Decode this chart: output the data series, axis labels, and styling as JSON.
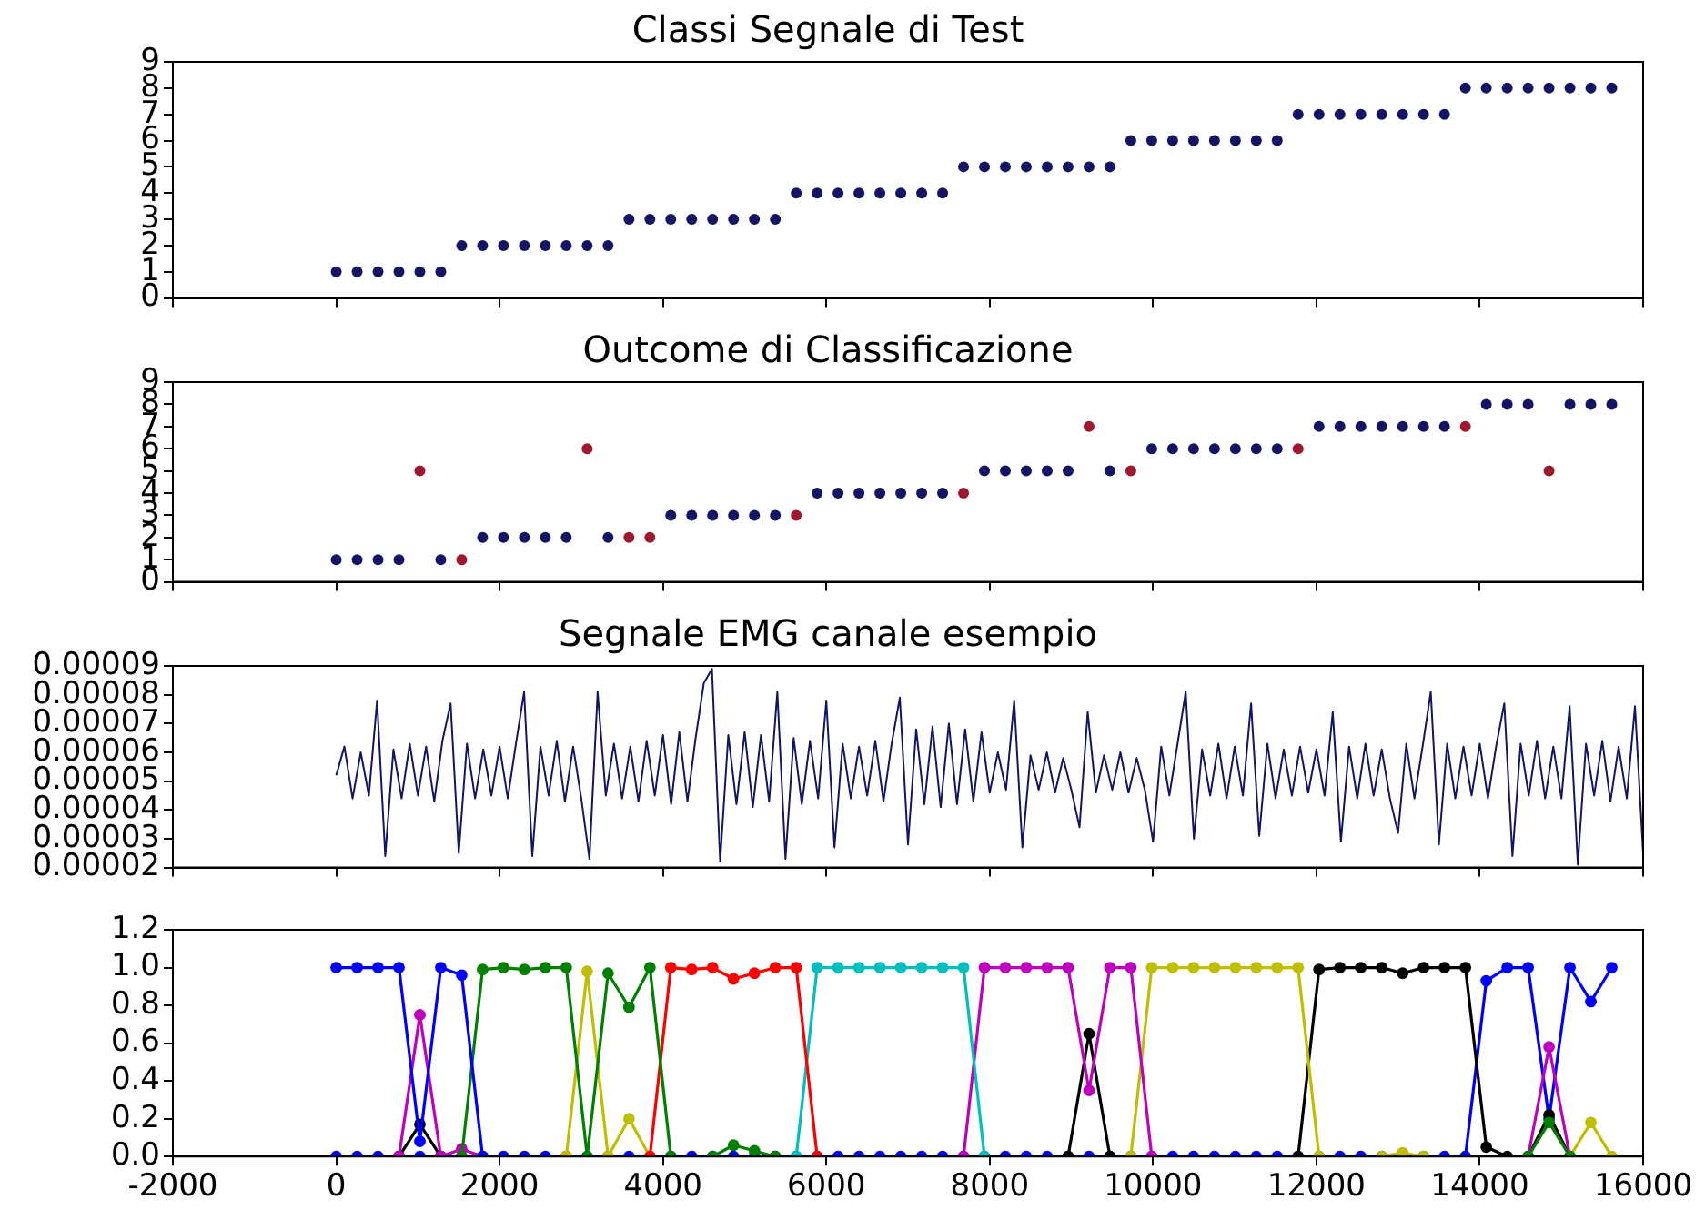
{
  "chart_data": [
    {
      "type": "scatter",
      "title": "Classi Segnale di Test",
      "marker": "circle",
      "tick_labels": "y",
      "xlim": [
        -2000,
        16000
      ],
      "xticks": [
        -2000,
        0,
        2000,
        4000,
        6000,
        8000,
        10000,
        12000,
        14000,
        16000
      ],
      "ylim": [
        0,
        9
      ],
      "yticks": [
        0,
        1,
        2,
        3,
        4,
        5,
        6,
        7,
        8,
        9
      ],
      "series": [
        {
          "color": "#141464",
          "x": [
            0,
            256,
            512,
            768,
            1024,
            1280,
            1536,
            1792,
            2048,
            2304,
            2560,
            2816,
            3072,
            3328,
            3584,
            3840,
            4096,
            4352,
            4608,
            4864,
            5120,
            5376,
            5632,
            5888,
            6144,
            6400,
            6656,
            6912,
            7168,
            7424,
            7680,
            7936,
            8192,
            8448,
            8704,
            8960,
            9216,
            9472,
            9728,
            9984,
            10240,
            10496,
            10752,
            11008,
            11264,
            11520,
            11776,
            12032,
            12288,
            12544,
            12800,
            13056,
            13312,
            13568,
            13824,
            14080,
            14336,
            14592,
            14848,
            15104,
            15360,
            15616
          ],
          "values": [
            1,
            1,
            1,
            1,
            1,
            1,
            2,
            2,
            2,
            2,
            2,
            2,
            2,
            2,
            3,
            3,
            3,
            3,
            3,
            3,
            3,
            3,
            4,
            4,
            4,
            4,
            4,
            4,
            4,
            4,
            5,
            5,
            5,
            5,
            5,
            5,
            5,
            5,
            6,
            6,
            6,
            6,
            6,
            6,
            6,
            6,
            7,
            7,
            7,
            7,
            7,
            7,
            7,
            7,
            8,
            8,
            8,
            8,
            8,
            8,
            8,
            8
          ]
        }
      ]
    },
    {
      "type": "scatter",
      "title": "Outcome di Classificazione",
      "marker": "circle",
      "tick_labels": "y",
      "xlim": [
        -2000,
        16000
      ],
      "xticks": [
        -2000,
        0,
        2000,
        4000,
        6000,
        8000,
        10000,
        12000,
        14000,
        16000
      ],
      "ylim": [
        0,
        9
      ],
      "yticks": [
        0,
        1,
        2,
        3,
        4,
        5,
        6,
        7,
        8,
        9
      ],
      "series": [
        {
          "color": "#141464",
          "x": [
            0,
            256,
            512,
            768,
            1280,
            1792,
            2048,
            2304,
            2560,
            2816,
            3328,
            4096,
            4352,
            4608,
            4864,
            5120,
            5376,
            5888,
            6144,
            6400,
            6656,
            6912,
            7168,
            7424,
            7936,
            8192,
            8448,
            8704,
            8960,
            9472,
            9984,
            10240,
            10496,
            10752,
            11008,
            11264,
            11520,
            12032,
            12288,
            12544,
            12800,
            13056,
            13312,
            13568,
            14080,
            14336,
            14592,
            15104,
            15360,
            15616
          ],
          "values": [
            1,
            1,
            1,
            1,
            1,
            2,
            2,
            2,
            2,
            2,
            2,
            3,
            3,
            3,
            3,
            3,
            3,
            4,
            4,
            4,
            4,
            4,
            4,
            4,
            5,
            5,
            5,
            5,
            5,
            5,
            6,
            6,
            6,
            6,
            6,
            6,
            6,
            7,
            7,
            7,
            7,
            7,
            7,
            7,
            8,
            8,
            8,
            8,
            8,
            8
          ]
        },
        {
          "color": "#a0182e",
          "x": [
            1024,
            1536,
            3072,
            3584,
            3840,
            5632,
            7680,
            9216,
            9728,
            11776,
            13824,
            14848
          ],
          "values": [
            5,
            1,
            6,
            2,
            2,
            3,
            4,
            7,
            5,
            6,
            7,
            5
          ]
        }
      ]
    },
    {
      "type": "line",
      "title": "Segnale EMG canale esempio",
      "marker": "none",
      "tick_labels": "y",
      "xlim": [
        -2000,
        16000
      ],
      "xticks": [
        -2000,
        0,
        2000,
        4000,
        6000,
        8000,
        10000,
        12000,
        14000,
        16000
      ],
      "ylim": [
        2e-05,
        9e-05
      ],
      "yticks": [
        {
          "value": 2e-05,
          "label": "0.00002"
        },
        {
          "value": 3e-05,
          "label": "0.00003"
        },
        {
          "value": 4e-05,
          "label": "0.00004"
        },
        {
          "value": 5e-05,
          "label": "0.00005"
        },
        {
          "value": 6e-05,
          "label": "0.00006"
        },
        {
          "value": 7e-05,
          "label": "0.00007"
        },
        {
          "value": 8e-05,
          "label": "0.00008"
        },
        {
          "value": 9e-05,
          "label": "0.00009"
        }
      ],
      "series": [
        {
          "color": "#141464",
          "x": [
            0,
            100,
            200,
            300,
            400,
            500,
            600,
            700,
            800,
            900,
            1000,
            1100,
            1200,
            1300,
            1400,
            1500,
            1600,
            1700,
            1800,
            1900,
            2000,
            2100,
            2200,
            2300,
            2400,
            2500,
            2600,
            2700,
            2800,
            2900,
            3000,
            3100,
            3200,
            3300,
            3400,
            3500,
            3600,
            3700,
            3800,
            3900,
            4000,
            4100,
            4200,
            4300,
            4400,
            4500,
            4600,
            4700,
            4800,
            4900,
            5000,
            5100,
            5200,
            5300,
            5400,
            5500,
            5600,
            5700,
            5800,
            5900,
            6000,
            6100,
            6200,
            6300,
            6400,
            6500,
            6600,
            6700,
            6800,
            6900,
            7000,
            7100,
            7200,
            7300,
            7400,
            7500,
            7600,
            7700,
            7800,
            7900,
            8000,
            8100,
            8200,
            8300,
            8400,
            8500,
            8600,
            8700,
            8800,
            8900,
            9000,
            9100,
            9200,
            9300,
            9400,
            9500,
            9600,
            9700,
            9800,
            9900,
            10000,
            10100,
            10200,
            10300,
            10400,
            10500,
            10600,
            10700,
            10800,
            10900,
            11000,
            11100,
            11200,
            11300,
            11400,
            11500,
            11600,
            11700,
            11800,
            11900,
            12000,
            12100,
            12200,
            12300,
            12400,
            12500,
            12600,
            12700,
            12800,
            12900,
            13000,
            13100,
            13200,
            13300,
            13400,
            13500,
            13600,
            13700,
            13800,
            13900,
            14000,
            14100,
            14200,
            14300,
            14400,
            14500,
            14600,
            14700,
            14800,
            14900,
            15000,
            15100,
            15200,
            15300,
            15400,
            15500,
            15600,
            15700,
            15800,
            15900,
            16000
          ],
          "values": [
            5.2e-05,
            6.2e-05,
            4.4e-05,
            6e-05,
            4.5e-05,
            7.8e-05,
            2.4e-05,
            6.1e-05,
            4.4e-05,
            6.3e-05,
            4.5e-05,
            6.2e-05,
            4.3e-05,
            6.4e-05,
            7.7e-05,
            2.5e-05,
            6.3e-05,
            4.4e-05,
            6.1e-05,
            4.5e-05,
            6.2e-05,
            4.4e-05,
            6.3e-05,
            8.1e-05,
            2.4e-05,
            6.2e-05,
            4.5e-05,
            6.4e-05,
            4.3e-05,
            6.2e-05,
            4.4e-05,
            2.3e-05,
            8.1e-05,
            4.5e-05,
            6.3e-05,
            4.4e-05,
            6.2e-05,
            4.3e-05,
            6.4e-05,
            4.5e-05,
            6.6e-05,
            4.2e-05,
            6.7e-05,
            4.3e-05,
            6.5e-05,
            8.4e-05,
            8.9e-05,
            2.2e-05,
            6.6e-05,
            4.2e-05,
            6.7e-05,
            4.1e-05,
            6.6e-05,
            4.3e-05,
            8.1e-05,
            2.3e-05,
            6.5e-05,
            4.2e-05,
            6.4e-05,
            4.4e-05,
            7.8e-05,
            2.7e-05,
            6.3e-05,
            4.4e-05,
            6.2e-05,
            4.5e-05,
            6.4e-05,
            4.3e-05,
            6.3e-05,
            7.9e-05,
            2.8e-05,
            6.8e-05,
            4.2e-05,
            6.9e-05,
            4.1e-05,
            7e-05,
            4.2e-05,
            6.8e-05,
            4.3e-05,
            6.7e-05,
            4.6e-05,
            6e-05,
            4.7e-05,
            7.8e-05,
            2.7e-05,
            5.9e-05,
            4.7e-05,
            6e-05,
            4.6e-05,
            5.8e-05,
            4.7e-05,
            3.4e-05,
            7.4e-05,
            4.6e-05,
            5.9e-05,
            4.7e-05,
            6e-05,
            4.6e-05,
            5.8e-05,
            4.7e-05,
            2.9e-05,
            6.2e-05,
            4.5e-05,
            6.3e-05,
            8.1e-05,
            3e-05,
            6.1e-05,
            4.5e-05,
            6.3e-05,
            4.4e-05,
            6.2e-05,
            4.5e-05,
            7.7e-05,
            3.1e-05,
            6.3e-05,
            4.4e-05,
            6.1e-05,
            4.5e-05,
            6.2e-05,
            4.6e-05,
            6.1e-05,
            4.5e-05,
            7.4e-05,
            2.9e-05,
            6.2e-05,
            4.4e-05,
            6.3e-05,
            4.5e-05,
            6.1e-05,
            4.4e-05,
            3.2e-05,
            6.3e-05,
            4.4e-05,
            6.2e-05,
            8.1e-05,
            2.8e-05,
            6.3e-05,
            4.4e-05,
            6.2e-05,
            4.5e-05,
            6.3e-05,
            4.4e-05,
            6.2e-05,
            7.7e-05,
            2.4e-05,
            6.3e-05,
            4.5e-05,
            6.4e-05,
            4.4e-05,
            6.2e-05,
            4.4e-05,
            7.6e-05,
            2.1e-05,
            6.3e-05,
            4.5e-05,
            6.4e-05,
            4.3e-05,
            6.2e-05,
            4.4e-05,
            7.6e-05,
            2.5e-05
          ]
        }
      ]
    },
    {
      "type": "line",
      "marker": "circle",
      "line_style": "solid",
      "xlim": [
        -2000,
        16000
      ],
      "xticks": [
        -2000,
        0,
        2000,
        4000,
        6000,
        8000,
        10000,
        12000,
        14000,
        16000
      ],
      "ylim": [
        0,
        1.2
      ],
      "yticks": [
        {
          "value": 0,
          "label": "0.0"
        },
        {
          "value": 0.2,
          "label": "0.2"
        },
        {
          "value": 0.4,
          "label": "0.4"
        },
        {
          "value": 0.6,
          "label": "0.6"
        },
        {
          "value": 0.8,
          "label": "0.8"
        },
        {
          "value": 1,
          "label": "1.0"
        },
        {
          "value": 1.2,
          "label": "1.2"
        }
      ],
      "x": [
        0,
        256,
        512,
        768,
        1024,
        1280,
        1536,
        1792,
        2048,
        2304,
        2560,
        2816,
        3072,
        3328,
        3584,
        3840,
        4096,
        4352,
        4608,
        4864,
        5120,
        5376,
        5632,
        5888,
        6144,
        6400,
        6656,
        6912,
        7168,
        7424,
        7680,
        7936,
        8192,
        8448,
        8704,
        8960,
        9216,
        9472,
        9728,
        9984,
        10240,
        10496,
        10752,
        11008,
        11264,
        11520,
        11776,
        12032,
        12288,
        12544,
        12800,
        13056,
        13312,
        13568,
        13824,
        14080,
        14336,
        14592,
        14848,
        15104,
        15360,
        15616
      ],
      "series": [
        {
          "color": "#0000ff",
          "values": [
            1,
            1,
            1,
            1,
            0.08,
            1,
            0.96,
            0,
            null,
            null,
            null,
            null,
            null,
            null,
            null,
            null,
            null,
            null,
            null,
            null,
            null,
            null,
            null,
            null,
            null,
            null,
            null,
            null,
            null,
            null,
            null,
            null,
            null,
            null,
            null,
            null,
            null,
            null,
            null,
            null,
            null,
            null,
            null,
            null,
            null,
            null,
            null,
            null,
            null,
            null,
            null,
            null,
            null,
            null,
            null,
            null,
            null,
            null,
            null,
            null,
            null,
            null
          ]
        },
        {
          "color": "#008000",
          "values": [
            null,
            null,
            null,
            null,
            null,
            null,
            0,
            0.99,
            1,
            0.99,
            1,
            1,
            0,
            0.97,
            0.79,
            1,
            0,
            null,
            0,
            0.06,
            0.03,
            0,
            null,
            null,
            null,
            null,
            null,
            null,
            null,
            null,
            null,
            null,
            null,
            null,
            null,
            null,
            null,
            null,
            null,
            null,
            null,
            null,
            null,
            null,
            null,
            null,
            null,
            null,
            null,
            null,
            null,
            null,
            null,
            null,
            null,
            null,
            null,
            0,
            0.18,
            0,
            null,
            null
          ]
        },
        {
          "color": "#ff0000",
          "values": [
            null,
            null,
            null,
            null,
            null,
            null,
            null,
            null,
            null,
            null,
            null,
            null,
            null,
            null,
            null,
            0,
            1,
            0.99,
            1,
            0.94,
            0.97,
            1,
            1,
            0,
            null,
            null,
            null,
            null,
            null,
            null,
            null,
            null,
            null,
            null,
            null,
            null,
            null,
            null,
            null,
            null,
            null,
            null,
            null,
            null,
            null,
            null,
            null,
            null,
            null,
            null,
            null,
            null,
            null,
            null,
            null,
            null,
            null,
            null,
            null,
            null,
            null,
            null
          ]
        },
        {
          "color": "#00bfbf",
          "values": [
            null,
            null,
            null,
            null,
            null,
            null,
            null,
            null,
            null,
            null,
            null,
            null,
            null,
            null,
            null,
            null,
            null,
            null,
            null,
            null,
            null,
            null,
            0,
            1,
            1,
            1,
            1,
            1,
            1,
            1,
            1,
            0,
            null,
            null,
            null,
            null,
            null,
            null,
            null,
            null,
            null,
            null,
            null,
            null,
            null,
            null,
            null,
            null,
            null,
            null,
            null,
            null,
            null,
            null,
            null,
            null,
            null,
            null,
            null,
            null,
            null,
            null
          ]
        },
        {
          "color": "#bf00bf",
          "values": [
            null,
            null,
            null,
            0,
            0.75,
            0,
            0.04,
            0,
            null,
            null,
            null,
            null,
            null,
            null,
            null,
            null,
            null,
            null,
            null,
            null,
            null,
            null,
            null,
            null,
            null,
            null,
            null,
            null,
            null,
            null,
            0,
            1,
            1,
            1,
            1,
            1,
            0.35,
            1,
            1,
            0,
            null,
            null,
            null,
            null,
            null,
            null,
            null,
            null,
            null,
            null,
            null,
            null,
            null,
            null,
            null,
            null,
            null,
            0,
            0.58,
            0,
            null,
            null
          ]
        },
        {
          "color": "#bfbf00",
          "values": [
            null,
            null,
            null,
            null,
            null,
            null,
            null,
            null,
            null,
            null,
            null,
            0,
            0.98,
            0,
            0.2,
            0,
            null,
            null,
            null,
            null,
            null,
            null,
            null,
            null,
            null,
            null,
            null,
            null,
            null,
            null,
            null,
            null,
            null,
            null,
            null,
            null,
            null,
            null,
            0,
            1,
            1,
            1,
            1,
            1,
            1,
            1,
            1,
            0,
            null,
            null,
            0,
            0.02,
            0,
            null,
            null,
            null,
            null,
            null,
            null,
            0,
            0.18,
            0
          ]
        },
        {
          "color": "#000000",
          "values": [
            null,
            null,
            null,
            0,
            0.17,
            0,
            null,
            null,
            null,
            null,
            null,
            null,
            null,
            null,
            null,
            null,
            null,
            null,
            null,
            null,
            null,
            null,
            null,
            null,
            null,
            null,
            null,
            null,
            null,
            null,
            null,
            null,
            null,
            null,
            null,
            0,
            0.65,
            0,
            null,
            null,
            null,
            null,
            null,
            null,
            null,
            null,
            0,
            0.99,
            1,
            1,
            1,
            0.97,
            1,
            1,
            1,
            0.05,
            0,
            0,
            0.22,
            0,
            null,
            null
          ]
        },
        {
          "color": "#0000ff",
          "values": [
            0,
            0,
            0,
            0,
            0,
            0,
            0,
            0,
            0,
            0,
            0,
            0,
            0,
            0,
            0,
            0,
            0,
            0,
            0,
            0,
            0,
            0,
            0,
            0,
            0,
            0,
            0,
            0,
            0,
            0,
            0,
            0,
            0,
            0,
            0,
            0,
            0,
            0,
            0,
            0,
            0,
            0,
            0,
            0,
            0,
            0,
            0,
            0,
            0,
            0,
            0,
            0,
            0,
            0,
            0,
            0.93,
            1,
            1,
            0.2,
            1,
            0.82,
            1
          ]
        }
      ]
    }
  ]
}
